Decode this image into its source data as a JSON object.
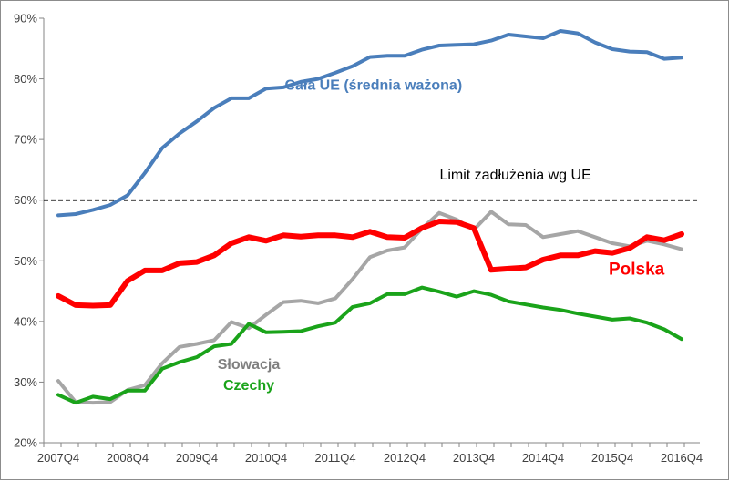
{
  "chart_data": {
    "type": "line",
    "title": "",
    "xlabel": "",
    "ylabel": "",
    "ylim": [
      20,
      90
    ],
    "y_ticks": [
      20,
      30,
      40,
      50,
      60,
      70,
      80,
      90
    ],
    "y_tick_labels": [
      "20%",
      "30%",
      "40%",
      "50%",
      "60%",
      "70%",
      "80%",
      "90%"
    ],
    "x_tick_labels": [
      "2007Q4",
      "2008Q4",
      "2009Q4",
      "2010Q4",
      "2011Q4",
      "2012Q4",
      "2013Q4",
      "2014Q4",
      "2015Q4",
      "2016Q4"
    ],
    "x": [
      "2007Q4",
      "2008Q1",
      "2008Q2",
      "2008Q3",
      "2008Q4",
      "2009Q1",
      "2009Q2",
      "2009Q3",
      "2009Q4",
      "2010Q1",
      "2010Q2",
      "2010Q3",
      "2010Q4",
      "2011Q1",
      "2011Q2",
      "2011Q3",
      "2011Q4",
      "2012Q1",
      "2012Q2",
      "2012Q3",
      "2012Q4",
      "2013Q1",
      "2013Q2",
      "2013Q3",
      "2013Q4",
      "2014Q1",
      "2014Q2",
      "2014Q3",
      "2014Q4",
      "2015Q1",
      "2015Q2",
      "2015Q3",
      "2015Q4",
      "2016Q1",
      "2016Q2",
      "2016Q3",
      "2016Q4"
    ],
    "grid": false,
    "reference_line": {
      "value": 60,
      "label": "Limit zadłużenia wg UE",
      "style": "dashed",
      "color": "#000000"
    },
    "series": [
      {
        "name": "Cała UE (średnia ważona)",
        "color": "#4a7ebb",
        "values": [
          57.5,
          57.7,
          58.4,
          59.2,
          60.8,
          64.5,
          68.6,
          71.0,
          73.0,
          75.2,
          76.8,
          76.8,
          78.4,
          78.6,
          79.5,
          80.0,
          81.0,
          82.1,
          83.6,
          83.8,
          83.8,
          84.8,
          85.5,
          85.6,
          85.7,
          86.3,
          87.3,
          87.0,
          86.7,
          87.9,
          87.5,
          86.0,
          84.9,
          84.5,
          84.4,
          83.3,
          83.5
        ]
      },
      {
        "name": "Polska",
        "color": "#ff0000",
        "values": [
          44.2,
          42.7,
          42.6,
          42.7,
          46.7,
          48.4,
          48.4,
          49.6,
          49.8,
          50.9,
          52.9,
          53.9,
          53.3,
          54.2,
          54.0,
          54.2,
          54.2,
          53.9,
          54.8,
          53.9,
          53.8,
          55.4,
          56.5,
          56.4,
          55.4,
          48.5,
          48.7,
          48.9,
          50.2,
          50.9,
          50.9,
          51.6,
          51.3,
          52.1,
          53.9,
          53.4,
          54.4
        ]
      },
      {
        "name": "Słowacja",
        "color": "#a6a6a6",
        "values": [
          30.2,
          26.7,
          26.6,
          26.7,
          28.7,
          29.5,
          33.1,
          35.8,
          36.3,
          36.9,
          39.9,
          38.9,
          41.1,
          43.2,
          43.4,
          43.0,
          43.8,
          47.0,
          50.6,
          51.7,
          52.2,
          55.3,
          57.9,
          56.8,
          55.1,
          58.1,
          56.0,
          55.9,
          53.9,
          54.4,
          54.9,
          53.9,
          52.9,
          52.4,
          53.3,
          52.7,
          51.9
        ]
      },
      {
        "name": "Czechy",
        "color": "#1aa31a",
        "values": [
          27.9,
          26.6,
          27.6,
          27.2,
          28.6,
          28.6,
          32.2,
          33.3,
          34.1,
          35.9,
          36.3,
          39.6,
          38.2,
          38.3,
          38.4,
          39.2,
          39.8,
          42.4,
          43.0,
          44.5,
          44.5,
          45.6,
          44.9,
          44.1,
          45.0,
          44.4,
          43.3,
          42.8,
          42.3,
          41.9,
          41.3,
          40.8,
          40.3,
          40.5,
          39.8,
          38.7,
          37.1
        ]
      }
    ],
    "annotations": [
      {
        "text": "Cała UE (średnia ważona)",
        "color": "#4a7ebb",
        "x_index": 18.2,
        "y": 78.2
      },
      {
        "text": "Limit zadłużenia wg UE",
        "color": "#000000",
        "x_index": 26.4,
        "y": 63.4
      },
      {
        "text": "Polska",
        "color": "#ff0000",
        "x_index": 33.4,
        "y": 47.7
      },
      {
        "text": "Słowacja",
        "color": "#808080",
        "x_index": 11.0,
        "y": 32.2
      },
      {
        "text": "Czechy",
        "color": "#1aa31a",
        "x_index": 11.0,
        "y": 28.7
      }
    ]
  }
}
